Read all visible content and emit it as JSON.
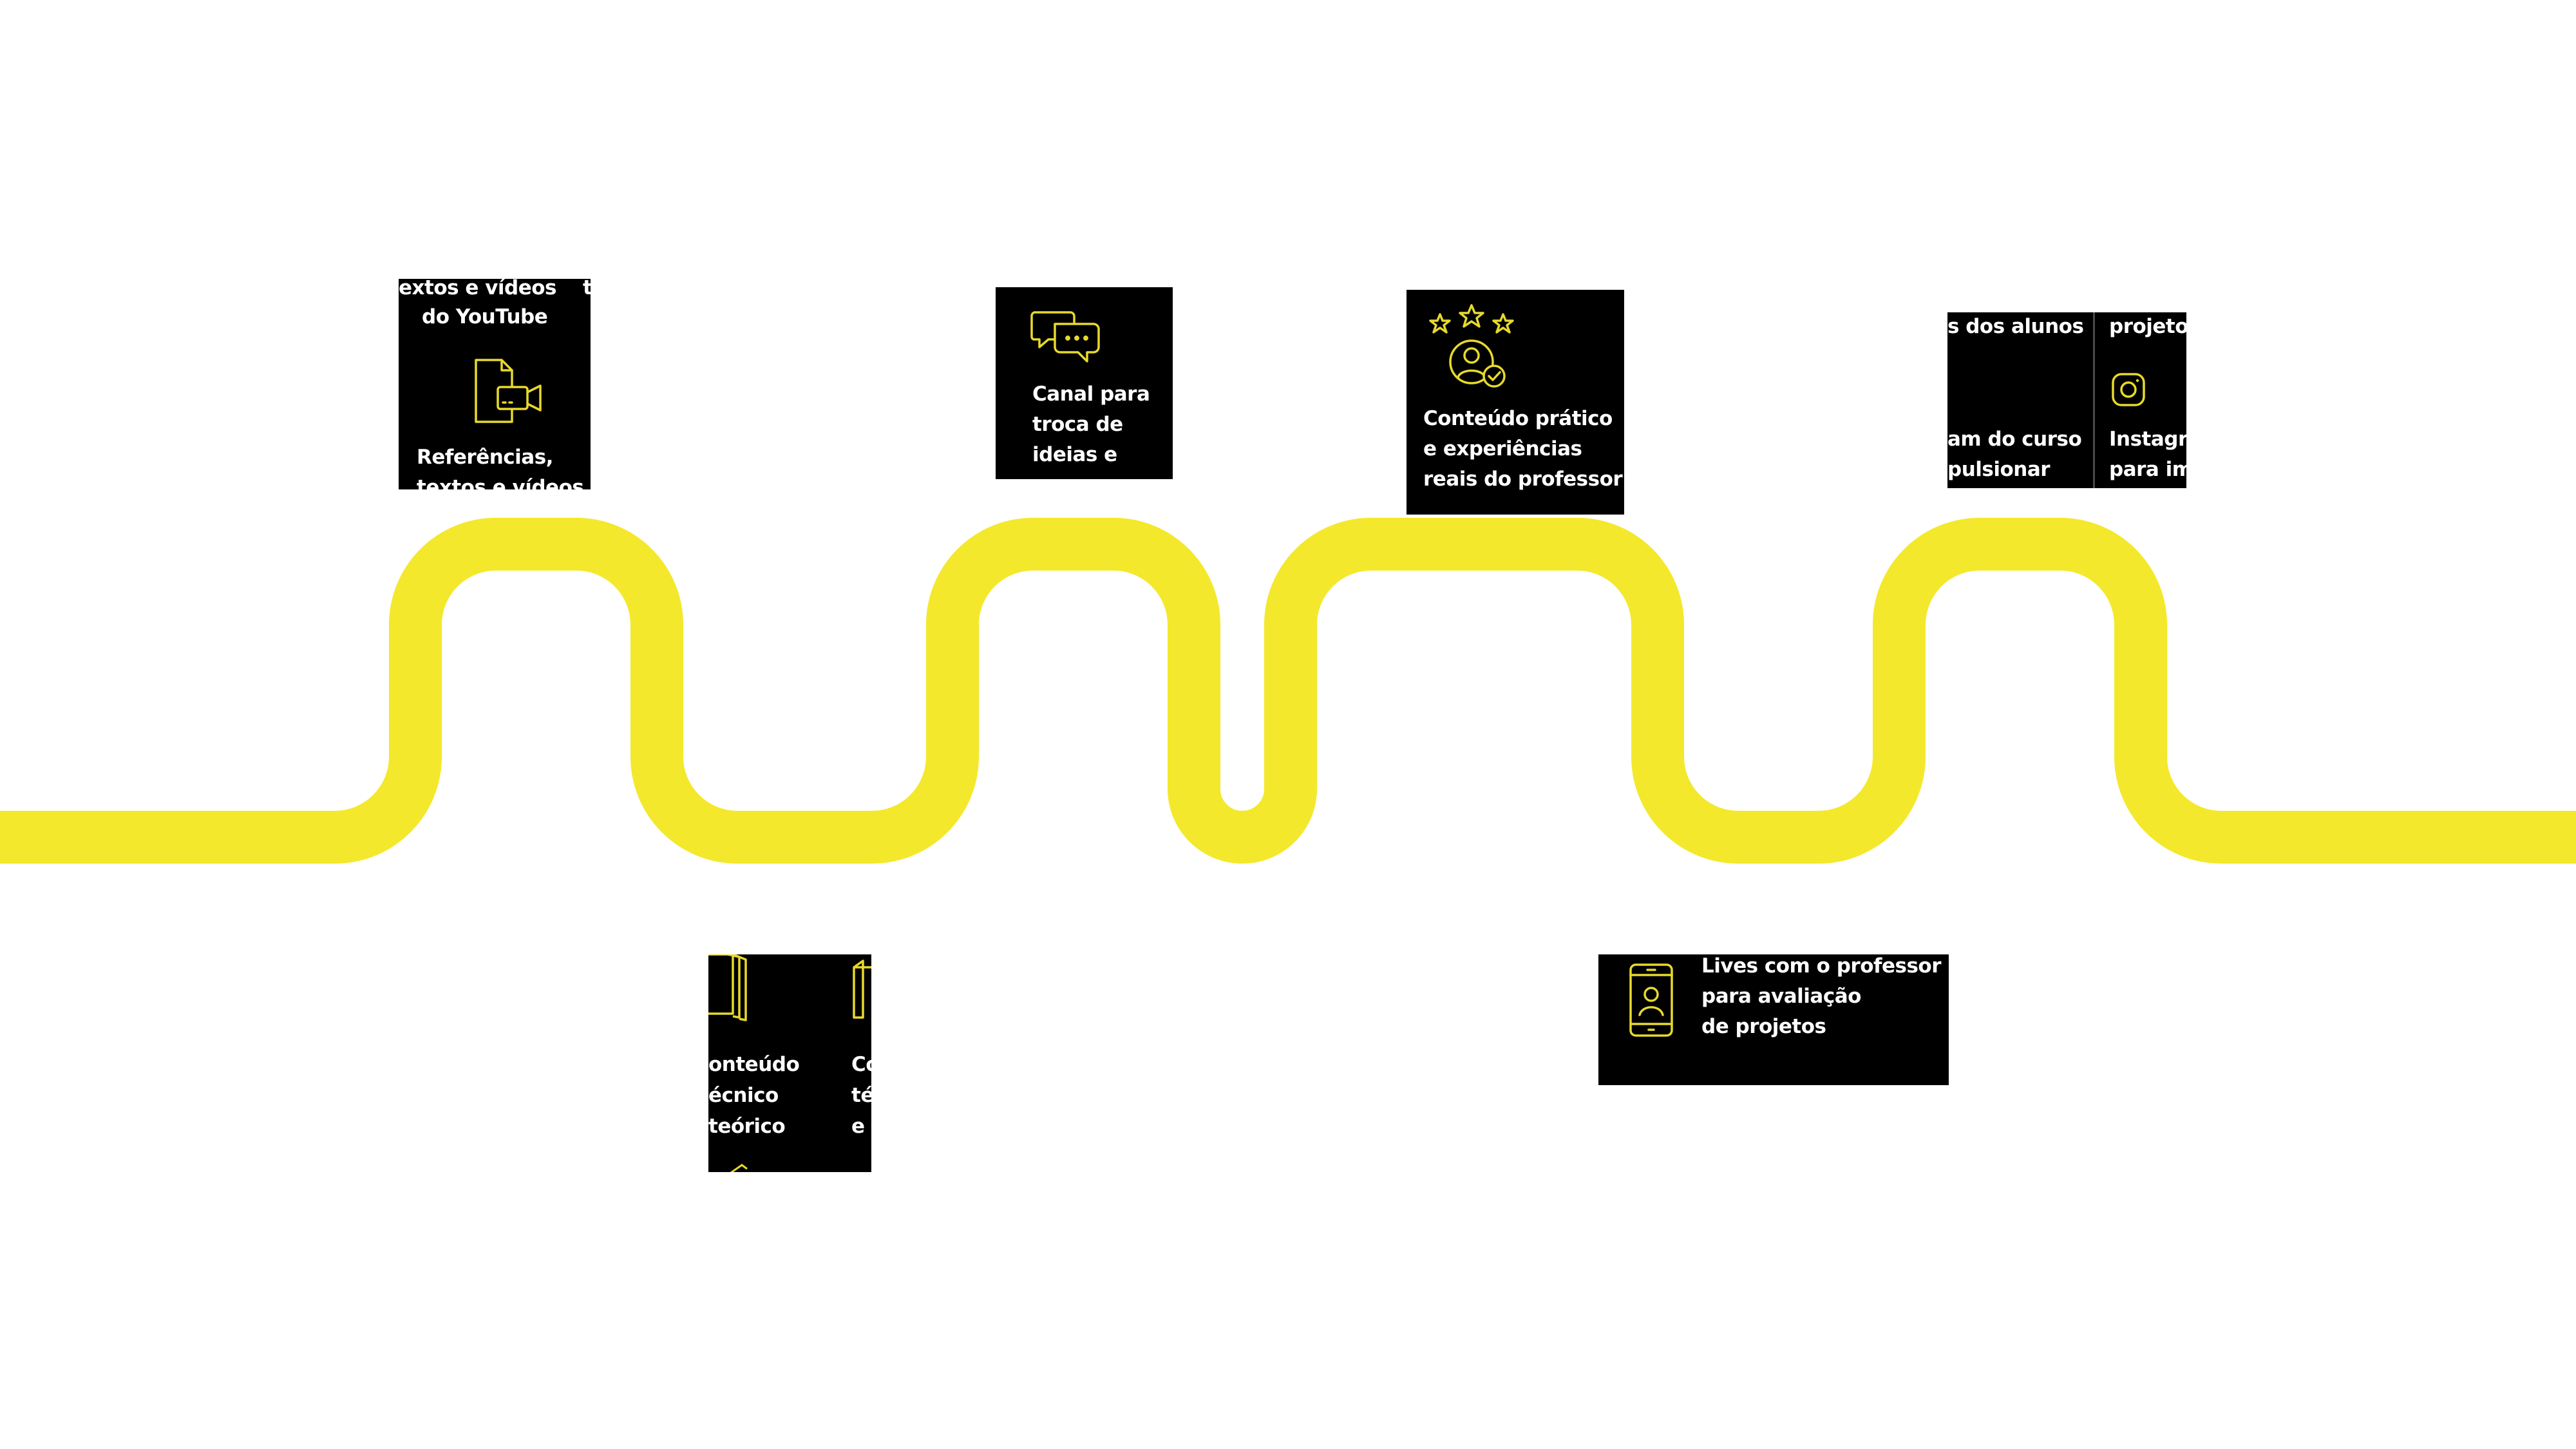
{
  "colors": {
    "road": "#F4E82C",
    "card": "#000000",
    "icon": "#E7D92C",
    "text": "#FFFFFF",
    "background": "#FFFFFF"
  },
  "cards": [
    {
      "id": "references",
      "icon": "video-file-icon",
      "top_lines": [
        "extos e vídeos",
        "do YouTube"
      ],
      "side_char": "t",
      "bottom_line": "Referências,",
      "cut_line": "textos e vídeos"
    },
    {
      "id": "technical",
      "icon": "stacked-documents-icon",
      "col1": [
        "onteúdo",
        "écnico",
        "teórico"
      ],
      "col2": [
        "Co",
        "té",
        "e t"
      ]
    },
    {
      "id": "channel",
      "icon": "chat-bubbles-icon",
      "lines": [
        "Canal para",
        "troca de",
        "ideias e"
      ]
    },
    {
      "id": "practical",
      "icon": "rating-person-icon",
      "lines": [
        "Conteúdo prático",
        "e experiências",
        "reais do professor"
      ]
    },
    {
      "id": "lives",
      "icon": "mobile-person-icon",
      "lines": [
        "Lives com o professor",
        "para avaliação",
        "de projetos"
      ]
    },
    {
      "id": "instagram",
      "icon": "instagram-icon",
      "col1_top": "s dos alunos",
      "col1_bottom": [
        "am do curso",
        "pulsionar"
      ],
      "col2_top": "projetos",
      "col2_bottom": [
        "Instagra",
        "para im"
      ]
    }
  ]
}
